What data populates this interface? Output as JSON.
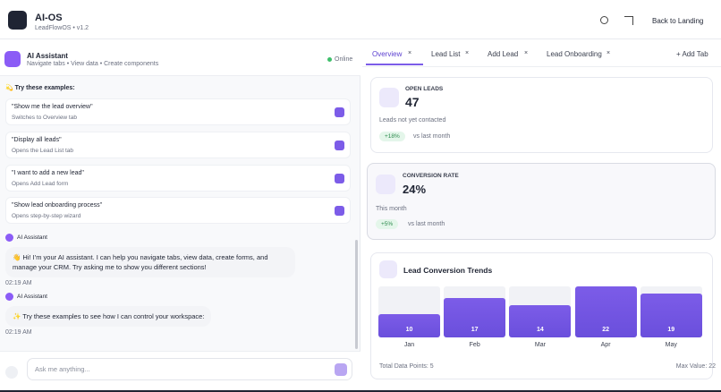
{
  "header": {
    "title": "AI-OS",
    "subtitle": "LeadFlowOS • v1.2",
    "back": "Back to Landing"
  },
  "assistant": {
    "title": "AI Assistant",
    "subtitle": "Navigate tabs • View data • Create components",
    "status": "Online",
    "examples_heading": "💫 Try these examples:",
    "examples": [
      {
        "prompt": "\"Show me the lead overview\"",
        "desc": "Switches to Overview tab"
      },
      {
        "prompt": "\"Display all leads\"",
        "desc": "Opens the Lead List tab"
      },
      {
        "prompt": "\"I want to add a new lead\"",
        "desc": "Opens Add Lead form"
      },
      {
        "prompt": "\"Show lead onboarding process\"",
        "desc": "Opens step-by-step wizard"
      }
    ],
    "messages": [
      {
        "sender": "AI Assistant",
        "text": "👋 Hi! I'm your AI assistant. I can help you navigate tabs, view data, create forms, and manage your CRM. Try asking me to show you different sections!",
        "time": "02:19 AM"
      },
      {
        "sender": "AI Assistant",
        "text": "✨ Try these examples to see how I can control your workspace:",
        "time": "02:19 AM"
      }
    ],
    "input_placeholder": "Ask me anything..."
  },
  "tabs": {
    "items": [
      "Overview",
      "Lead List",
      "Add Lead",
      "Lead Onboarding"
    ],
    "add": "+ Add Tab"
  },
  "cards": [
    {
      "label": "OPEN LEADS",
      "value": 47,
      "desc": "Leads not yet contacted",
      "change": "+18%",
      "compare": "vs last month"
    },
    {
      "label": "CONVERSION RATE",
      "value": "24%",
      "desc": "This month",
      "change": "+5%",
      "compare": "vs last month"
    }
  ],
  "trends": {
    "title": "Lead Conversion Trends",
    "categories": [
      "Jan",
      "Feb",
      "Mar",
      "Apr",
      "May"
    ],
    "values": [
      10,
      17,
      14,
      22,
      19
    ],
    "footer_left": "Total Data Points: 5",
    "footer_right": "Max Value: 22"
  }
}
